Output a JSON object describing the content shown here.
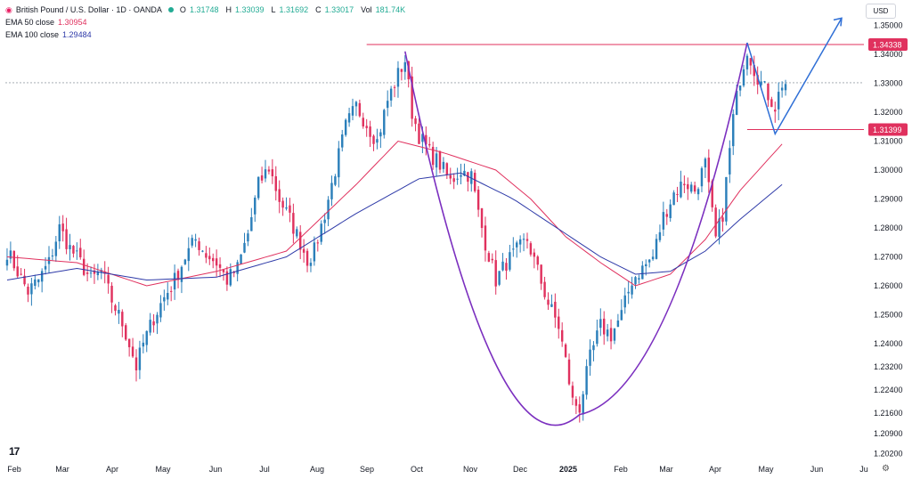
{
  "header": {
    "symbol_title": "British Pound / U.S. Dollar · 1D · OANDA",
    "ohlc": [
      {
        "k": "O",
        "v": "1.31748"
      },
      {
        "k": "H",
        "v": "1.33039"
      },
      {
        "k": "L",
        "v": "1.31692"
      },
      {
        "k": "C",
        "v": "1.33017"
      },
      {
        "k": "Vol",
        "v": "181.74K"
      }
    ],
    "ema50_label": "EMA 50 close",
    "ema50_value": "1.30954",
    "ema100_label": "EMA 100 close",
    "ema100_value": "1.29484",
    "currency_button": "USD"
  },
  "colors": {
    "up": "#2b7fba",
    "down": "#e0315e",
    "ema50": "#e0315e",
    "ema100": "#2e3aa8",
    "cup": "#7b2fbf",
    "arrow": "#2f6fd6",
    "hline": "#e0315e",
    "badge": "#e0315e"
  },
  "chart_data": {
    "type": "candlestick",
    "y_range": [
      1.2,
      1.352
    ],
    "y_ticks": [
      "1.35000",
      "1.34000",
      "1.33000",
      "1.32000",
      "1.31000",
      "1.30000",
      "1.29000",
      "1.28000",
      "1.27000",
      "1.26000",
      "1.25000",
      "1.24000",
      "1.23200",
      "1.22400",
      "1.21600",
      "1.20900",
      "1.20200"
    ],
    "x_labels": [
      "Feb",
      "Mar",
      "Apr",
      "May",
      "Jun",
      "Jul",
      "Aug",
      "Sep",
      "Oct",
      "Nov",
      "Dec",
      "2025",
      "Feb",
      "Mar",
      "Apr",
      "May",
      "Jun",
      "Ju"
    ],
    "price_badges": [
      "1.34338",
      "1.31399"
    ],
    "resistance_level": 1.34338,
    "support_level": 1.31399,
    "anchors": [
      [
        0,
        1.272
      ],
      [
        3,
        1.265
      ],
      [
        6,
        1.258
      ],
      [
        9,
        1.262
      ],
      [
        12,
        1.268
      ],
      [
        15,
        1.28
      ],
      [
        18,
        1.273
      ],
      [
        21,
        1.268
      ],
      [
        24,
        1.262
      ],
      [
        27,
        1.265
      ],
      [
        30,
        1.255
      ],
      [
        33,
        1.247
      ],
      [
        35,
        1.24
      ],
      [
        37,
        1.232
      ],
      [
        39,
        1.24
      ],
      [
        42,
        1.249
      ],
      [
        45,
        1.256
      ],
      [
        48,
        1.262
      ],
      [
        51,
        1.27
      ],
      [
        54,
        1.276
      ],
      [
        57,
        1.271
      ],
      [
        60,
        1.268
      ],
      [
        63,
        1.262
      ],
      [
        66,
        1.266
      ],
      [
        69,
        1.278
      ],
      [
        72,
        1.295
      ],
      [
        75,
        1.301
      ],
      [
        78,
        1.29
      ],
      [
        81,
        1.283
      ],
      [
        84,
        1.275
      ],
      [
        86,
        1.269
      ],
      [
        88,
        1.272
      ],
      [
        91,
        1.285
      ],
      [
        94,
        1.3
      ],
      [
        97,
        1.315
      ],
      [
        100,
        1.322
      ],
      [
        103,
        1.316
      ],
      [
        106,
        1.31
      ],
      [
        109,
        1.324
      ],
      [
        112,
        1.333
      ],
      [
        114,
        1.338
      ],
      [
        116,
        1.32
      ],
      [
        118,
        1.312
      ],
      [
        121,
        1.306
      ],
      [
        124,
        1.302
      ],
      [
        127,
        1.296
      ],
      [
        130,
        1.3
      ],
      [
        133,
        1.298
      ],
      [
        135,
        1.285
      ],
      [
        137,
        1.275
      ],
      [
        140,
        1.262
      ],
      [
        143,
        1.268
      ],
      [
        146,
        1.272
      ],
      [
        149,
        1.276
      ],
      [
        152,
        1.265
      ],
      [
        155,
        1.254
      ],
      [
        158,
        1.246
      ],
      [
        160,
        1.234
      ],
      [
        162,
        1.22
      ],
      [
        164,
        1.218
      ],
      [
        167,
        1.235
      ],
      [
        170,
        1.246
      ],
      [
        173,
        1.243
      ],
      [
        176,
        1.25
      ],
      [
        179,
        1.262
      ],
      [
        182,
        1.266
      ],
      [
        185,
        1.27
      ],
      [
        188,
        1.284
      ],
      [
        191,
        1.292
      ],
      [
        194,
        1.296
      ],
      [
        197,
        1.293
      ],
      [
        200,
        1.302
      ],
      [
        203,
        1.276
      ],
      [
        205,
        1.285
      ],
      [
        208,
        1.318
      ],
      [
        210,
        1.332
      ],
      [
        212,
        1.342
      ],
      [
        214,
        1.335
      ],
      [
        216,
        1.33
      ],
      [
        218,
        1.326
      ],
      [
        220,
        1.322
      ],
      [
        222,
        1.33
      ]
    ],
    "series": [
      {
        "name": "EMA 50 close",
        "points": [
          [
            0,
            1.27
          ],
          [
            20,
            1.268
          ],
          [
            40,
            1.26
          ],
          [
            60,
            1.265
          ],
          [
            80,
            1.272
          ],
          [
            100,
            1.295
          ],
          [
            112,
            1.31
          ],
          [
            125,
            1.306
          ],
          [
            140,
            1.3
          ],
          [
            150,
            1.29
          ],
          [
            160,
            1.277
          ],
          [
            170,
            1.268
          ],
          [
            180,
            1.26
          ],
          [
            190,
            1.264
          ],
          [
            200,
            1.276
          ],
          [
            210,
            1.293
          ],
          [
            222,
            1.309
          ]
        ]
      },
      {
        "name": "EMA 100 close",
        "points": [
          [
            0,
            1.262
          ],
          [
            20,
            1.266
          ],
          [
            40,
            1.262
          ],
          [
            60,
            1.263
          ],
          [
            80,
            1.27
          ],
          [
            100,
            1.285
          ],
          [
            118,
            1.297
          ],
          [
            130,
            1.299
          ],
          [
            145,
            1.29
          ],
          [
            160,
            1.278
          ],
          [
            170,
            1.27
          ],
          [
            180,
            1.264
          ],
          [
            190,
            1.265
          ],
          [
            200,
            1.272
          ],
          [
            210,
            1.283
          ],
          [
            222,
            1.295
          ]
        ]
      }
    ]
  }
}
